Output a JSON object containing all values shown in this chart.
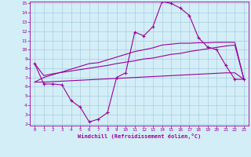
{
  "xlabel": "Windchill (Refroidissement éolien,°C)",
  "x_values": [
    0,
    1,
    2,
    3,
    4,
    5,
    6,
    7,
    8,
    9,
    10,
    11,
    12,
    13,
    14,
    15,
    16,
    17,
    18,
    19,
    20,
    21,
    22,
    23
  ],
  "line1_y": [
    8.5,
    6.3,
    6.3,
    6.2,
    4.5,
    3.8,
    2.2,
    2.5,
    3.2,
    7.0,
    7.5,
    11.9,
    11.5,
    12.5,
    15.2,
    15.0,
    14.5,
    13.7,
    11.3,
    10.3,
    10.0,
    8.3,
    6.8,
    6.8
  ],
  "line2_y": [
    6.5,
    6.5,
    6.55,
    6.6,
    6.65,
    6.7,
    6.75,
    6.8,
    6.85,
    6.9,
    6.95,
    7.0,
    7.05,
    7.1,
    7.15,
    7.2,
    7.25,
    7.3,
    7.35,
    7.4,
    7.45,
    7.5,
    7.5,
    6.8
  ],
  "line3_y": [
    6.5,
    7.0,
    7.3,
    7.6,
    7.9,
    8.2,
    8.5,
    8.6,
    8.9,
    9.2,
    9.5,
    9.8,
    10.0,
    10.2,
    10.5,
    10.6,
    10.7,
    10.7,
    10.75,
    10.75,
    10.8,
    10.8,
    10.8,
    6.8
  ],
  "line4_y": [
    8.5,
    7.2,
    7.4,
    7.55,
    7.7,
    7.85,
    8.0,
    8.15,
    8.3,
    8.5,
    8.65,
    8.8,
    9.0,
    9.1,
    9.3,
    9.5,
    9.6,
    9.8,
    9.95,
    10.1,
    10.25,
    10.4,
    10.5,
    6.8
  ],
  "line_color": "#990099",
  "bg_color": "#d4eef8",
  "grid_color": "#aaccdd",
  "ylim": [
    2,
    15
  ],
  "xlim": [
    0,
    23
  ],
  "yticks": [
    2,
    3,
    4,
    5,
    6,
    7,
    8,
    9,
    10,
    11,
    12,
    13,
    14,
    15
  ],
  "xticks": [
    0,
    1,
    2,
    3,
    4,
    5,
    6,
    7,
    8,
    9,
    10,
    11,
    12,
    13,
    14,
    15,
    16,
    17,
    18,
    19,
    20,
    21,
    22,
    23
  ]
}
